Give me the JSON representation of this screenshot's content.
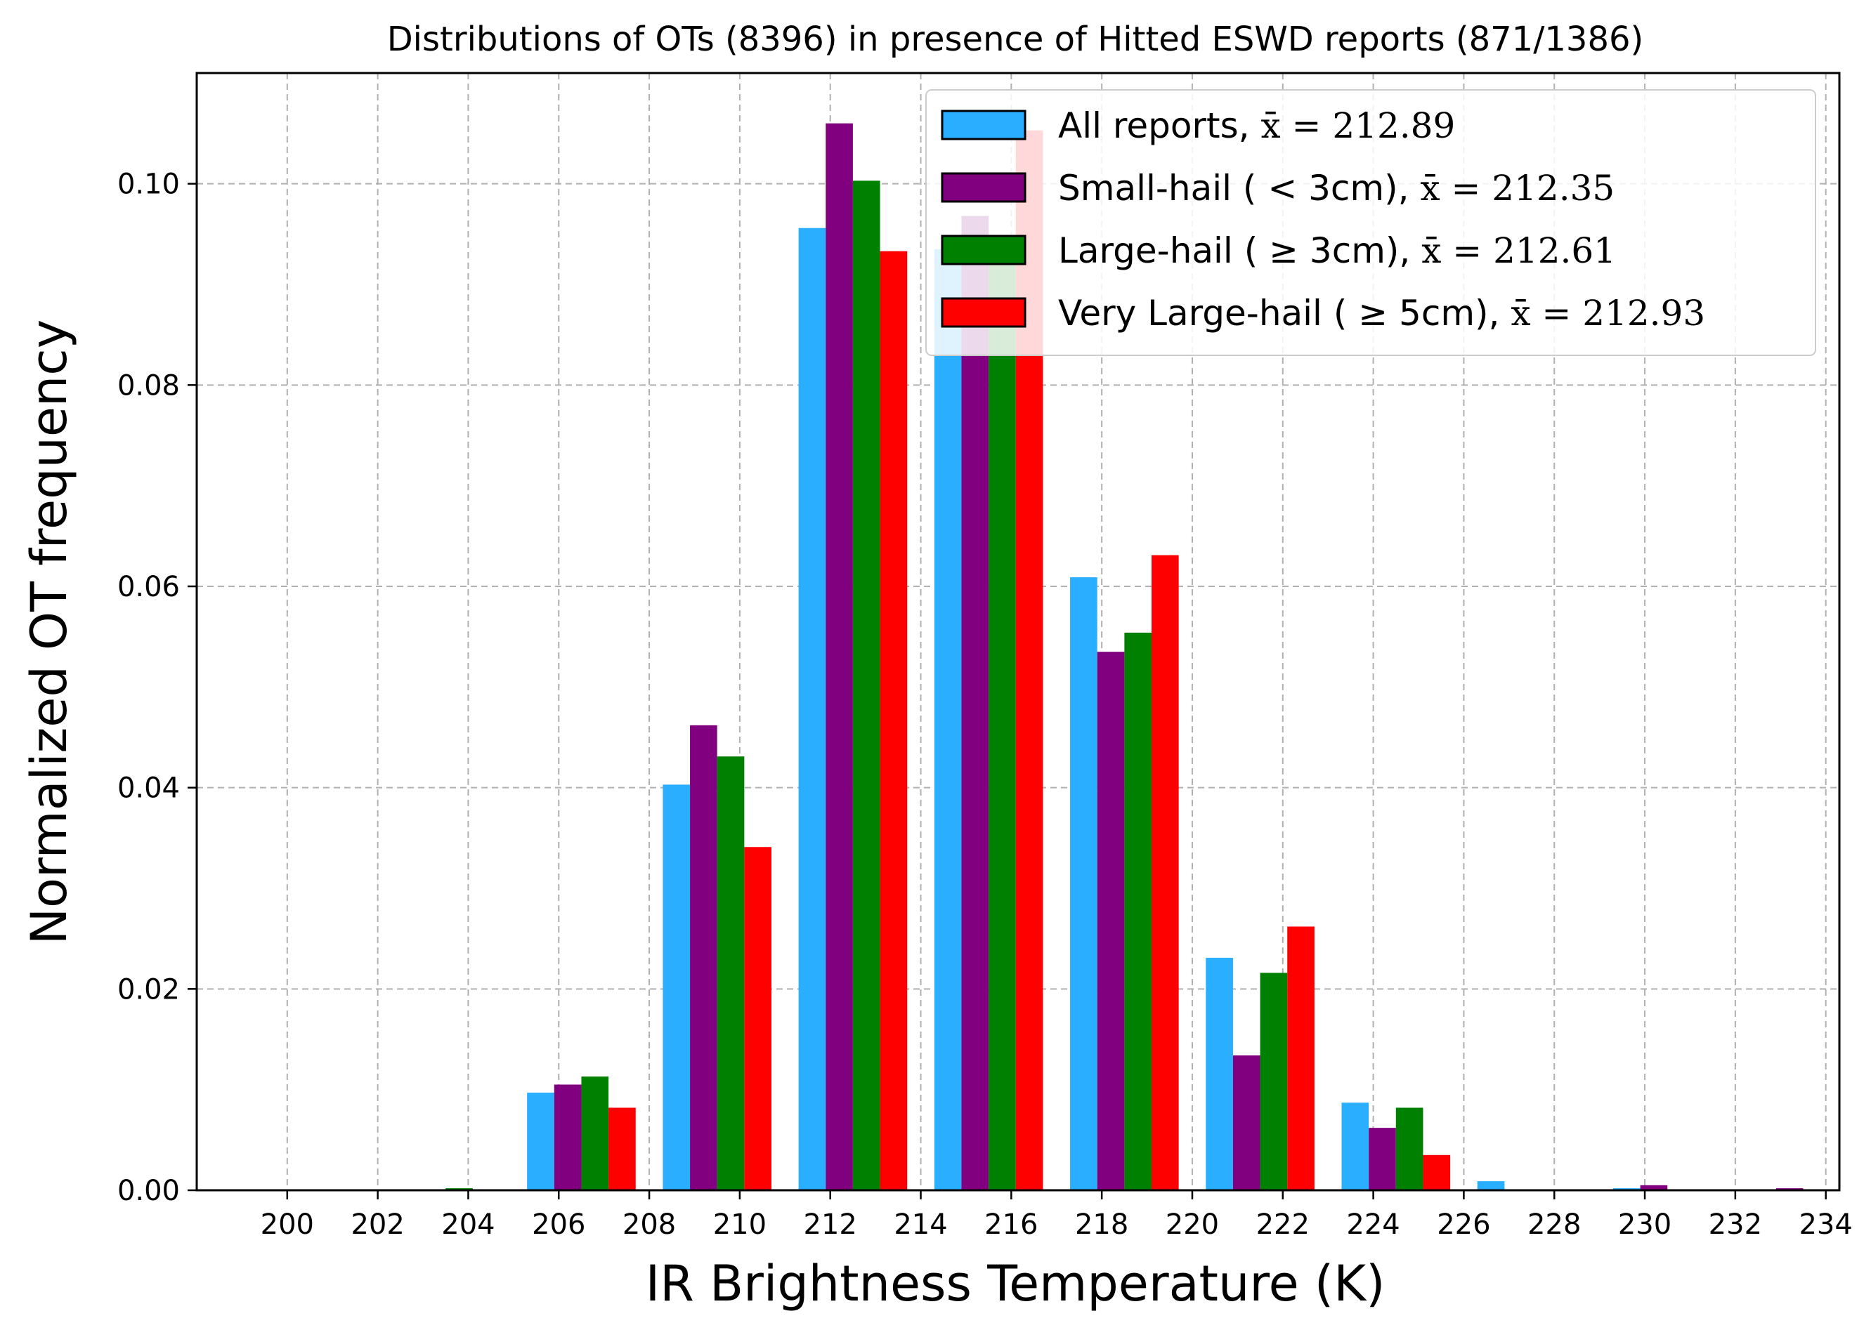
{
  "chart_data": {
    "type": "bar",
    "title": "Distributions of OTs (8396) in presence of Hitted ESWD reports (871/1386)",
    "xlabel": "IR Brightness Temperature (K)",
    "ylabel": "Normalized OT frequency",
    "xlim": [
      198,
      234.3
    ],
    "ylim": [
      0,
      0.111
    ],
    "xticks": [
      200,
      202,
      204,
      206,
      208,
      210,
      212,
      214,
      216,
      218,
      220,
      222,
      224,
      226,
      228,
      230,
      232,
      234
    ],
    "yticks": [
      0.0,
      0.02,
      0.04,
      0.06,
      0.08,
      0.1
    ],
    "ytick_labels": [
      "0.00",
      "0.02",
      "0.04",
      "0.06",
      "0.08",
      "0.10"
    ],
    "bin_starts": [
      199,
      202,
      205,
      208,
      211,
      214,
      217,
      220,
      223,
      226,
      229,
      232
    ],
    "bin_width": 3,
    "grid": true,
    "legend_position": "top-right",
    "series": [
      {
        "name": "All reports, x̄ = 212.89",
        "label_main": "All reports, ",
        "label_stat": "x̄ = 212.89",
        "color": "#2aaeff",
        "values": [
          0.0001,
          0.0,
          0.0097,
          0.0403,
          0.0956,
          0.0935,
          0.0609,
          0.0231,
          0.0087,
          0.0009,
          0.0002,
          0.0
        ]
      },
      {
        "name": "Small-hail (< 3cm), x̄ = 212.35",
        "label_main": "Small-hail ( < 3cm), ",
        "label_stat": "x̄ = 212.35",
        "color": "#800080",
        "values": [
          0.0,
          0.0,
          0.0105,
          0.0462,
          0.106,
          0.0968,
          0.0535,
          0.0134,
          0.0062,
          0.0,
          0.0005,
          0.0002
        ]
      },
      {
        "name": "Large-hail (≥ 3cm), x̄ = 212.61",
        "label_main": "Large-hail ( ≥ 3cm), ",
        "label_stat": "x̄ = 212.61",
        "color": "#008000",
        "values": [
          0.0,
          0.0002,
          0.0113,
          0.0431,
          0.1003,
          0.093,
          0.0554,
          0.0216,
          0.0082,
          0.0,
          0.0,
          0.0
        ]
      },
      {
        "name": "Very Large-hail (≥ 5cm), x̄ = 212.93",
        "label_main": "Very Large-hail ( ≥ 5cm), ",
        "label_stat": "x̄ = 212.93",
        "color": "#ff0000",
        "values": [
          0.0,
          0.0,
          0.0082,
          0.0341,
          0.0933,
          0.1053,
          0.0631,
          0.0262,
          0.0035,
          0.0,
          0.0,
          0.0
        ]
      }
    ]
  }
}
